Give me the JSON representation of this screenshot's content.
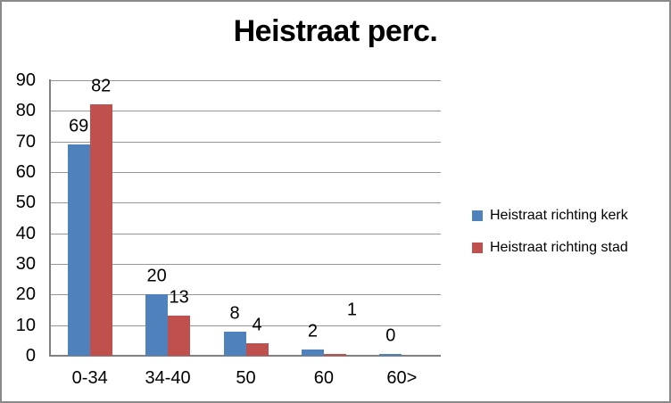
{
  "chart_data": {
    "type": "bar",
    "title": "Heistraat perc.",
    "categories": [
      "0-34",
      "34-40",
      "50",
      "60",
      "60>"
    ],
    "series": [
      {
        "name": "Heistraat richting kerk",
        "color": "#4F81BD",
        "values": [
          69,
          20,
          8,
          2,
          0
        ],
        "labels": [
          "69",
          "20",
          "8",
          "2",
          "0"
        ],
        "display_values": [
          69,
          20,
          8,
          2,
          0.5
        ],
        "label_offsets": [
          [
            0,
            0
          ],
          [
            0,
            0
          ],
          [
            0,
            0
          ],
          [
            0,
            0
          ],
          [
            0,
            0
          ]
        ]
      },
      {
        "name": "Heistraat richting stad",
        "color": "#C0504D",
        "values": [
          82,
          13,
          4,
          1,
          0
        ],
        "labels": [
          "82",
          "13",
          "4",
          "1",
          ""
        ],
        "display_values": [
          82,
          13,
          4,
          0.6,
          0
        ],
        "label_offsets": [
          [
            0,
            0
          ],
          [
            0,
            0
          ],
          [
            0,
            0
          ],
          [
            19,
            -29
          ],
          [
            0,
            0
          ]
        ]
      }
    ],
    "ylim": [
      0,
      90
    ],
    "ytick_step": 10,
    "yticks": [
      "0",
      "10",
      "20",
      "30",
      "40",
      "50",
      "60",
      "70",
      "80",
      "90"
    ],
    "xlabel": "",
    "ylabel": "",
    "grid": true,
    "legend_position": "right",
    "colors": {
      "gridline": "#969696",
      "axis": "#808080",
      "border": "#8A8A8A",
      "background": "#FFFFFF",
      "text": "#000000"
    }
  }
}
